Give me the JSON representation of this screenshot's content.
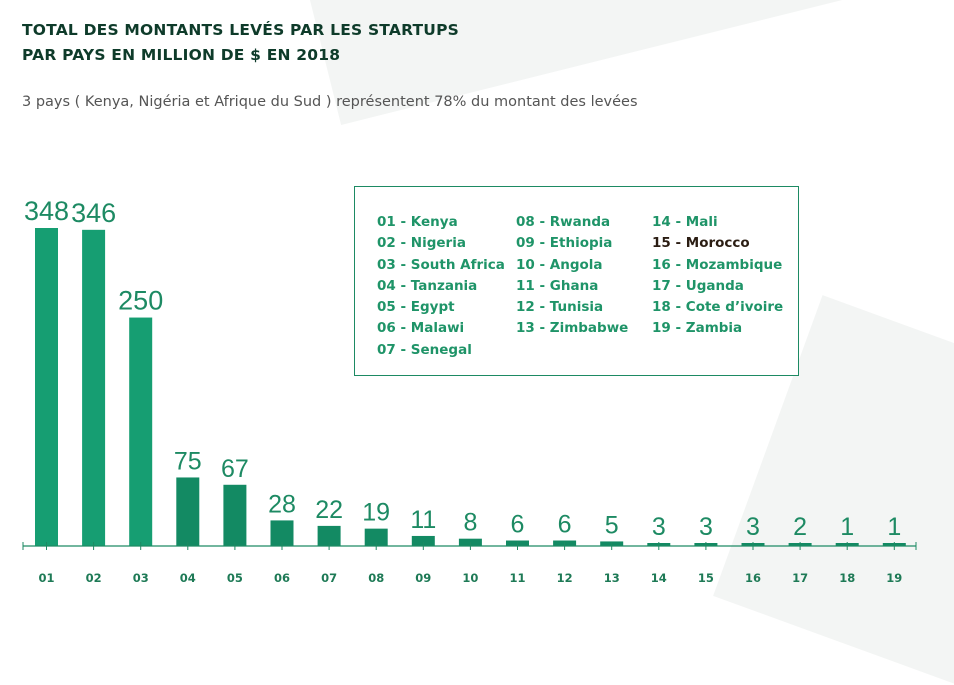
{
  "header": {
    "title_line1": "TOTAL DES MONTANTS LEVÉS PAR LES STARTUPS",
    "title_line2": "PAR PAYS EN MILLION DE $ EN 2018",
    "subtitle": "3 pays ( Kenya, Nigéria et Afrique du Sud ) représentent 78% du montant des levées"
  },
  "legend": {
    "highlight_index": 14,
    "items": [
      "01 - Kenya",
      "02 - Nigeria",
      "03 - South Africa",
      "04 - Tanzania",
      "05 - Egypt",
      "06 - Malawi",
      "07 - Senegal",
      "08 - Rwanda",
      "09 - Ethiopia",
      "10 - Angola",
      "11 - Ghana",
      "12 - Tunisia",
      "13 - Zimbabwe",
      "14 - Mali",
      "15 - Morocco",
      "16 - Mozambique",
      "17 - Uganda",
      "18 - Cote d’ivoire",
      "19 - Zambia"
    ]
  },
  "chart_data": {
    "type": "bar",
    "title": "TOTAL DES MONTANTS LEVÉS PAR LES STARTUPS PAR PAYS EN MILLION DE $ EN 2018",
    "xlabel": "",
    "ylabel": "",
    "categories": [
      "01",
      "02",
      "03",
      "04",
      "05",
      "06",
      "07",
      "08",
      "09",
      "10",
      "11",
      "12",
      "13",
      "14",
      "15",
      "16",
      "17",
      "18",
      "19"
    ],
    "values": [
      348,
      346,
      250,
      75,
      67,
      28,
      22,
      19,
      11,
      8,
      6,
      6,
      5,
      3,
      3,
      3,
      2,
      1,
      1
    ],
    "ylim": [
      0,
      348
    ],
    "grid": false,
    "legend_position": "top-right",
    "colors": {
      "bar": "#169e72",
      "bar_dark": "#138a63",
      "label": "#1d8a63",
      "tick_label": "#1e7a56",
      "axis": "#1d8a63"
    }
  }
}
